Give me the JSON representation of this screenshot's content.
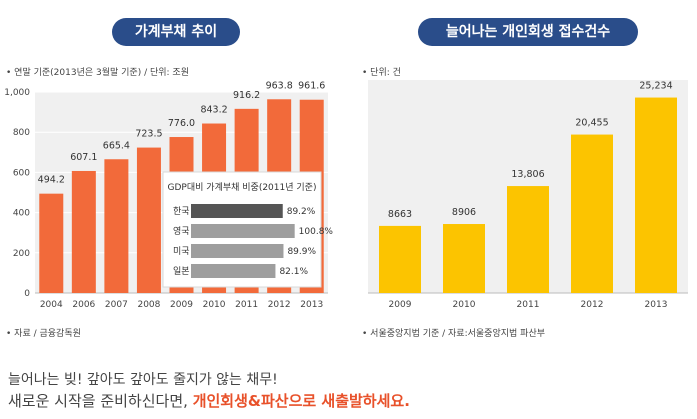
{
  "chart_data": [
    {
      "type": "bar",
      "title": "가계부채 추이",
      "unit_note": "• 연말 기준(2013년은 3월말 기준) / 단위: 조원",
      "source_note": "• 자료 / 금융감독원",
      "categories": [
        "2004",
        "2006",
        "2007",
        "2008",
        "2009",
        "2010",
        "2011",
        "2012",
        "2013"
      ],
      "values": [
        494.2,
        607.1,
        665.4,
        723.5,
        776.0,
        843.2,
        916.2,
        963.8,
        961.6
      ],
      "value_labels": [
        "494.2",
        "607.1",
        "665.4",
        "723.5",
        "776.0",
        "843.2",
        "916.2",
        "963.8",
        "961.6"
      ],
      "ylim": [
        0,
        1000
      ],
      "yticks": [
        "0",
        "200",
        "400",
        "600",
        "800",
        "1,000"
      ],
      "grid": true,
      "color": "#f26a3a"
    },
    {
      "type": "bar",
      "title": "GDP대비 가계부채 비중(2011년 기준)",
      "categories": [
        "한국",
        "영국",
        "미국",
        "일본"
      ],
      "values": [
        89.2,
        100.8,
        89.9,
        82.1
      ],
      "value_labels": [
        "89.2%",
        "100.8%",
        "89.9%",
        "82.1%"
      ],
      "highlight_color": "#555555",
      "color": "#9e9e9e"
    },
    {
      "type": "bar",
      "title": "늘어나는 개인회생 접수건수",
      "unit_note": "• 단위: 건",
      "source_note": "• 서울중앙지법 기준 / 자료:서울중앙지법 파산부",
      "categories": [
        "2009",
        "2010",
        "2011",
        "2012",
        "2013"
      ],
      "values": [
        8663,
        8906,
        13806,
        20455,
        25234
      ],
      "value_labels": [
        "8663",
        "8906",
        "13,806",
        "20,455",
        "25,234"
      ],
      "ylim": [
        0,
        27500
      ],
      "color": "#fcc400"
    }
  ],
  "message": {
    "line1": "늘어나는 빚! 갚아도 갚아도 줄지가 않는 채무!",
    "line2_prefix": "새로운 시작을 준비하신다면, ",
    "line2_highlight": "개인회생&파산으로 새출발하세요."
  }
}
